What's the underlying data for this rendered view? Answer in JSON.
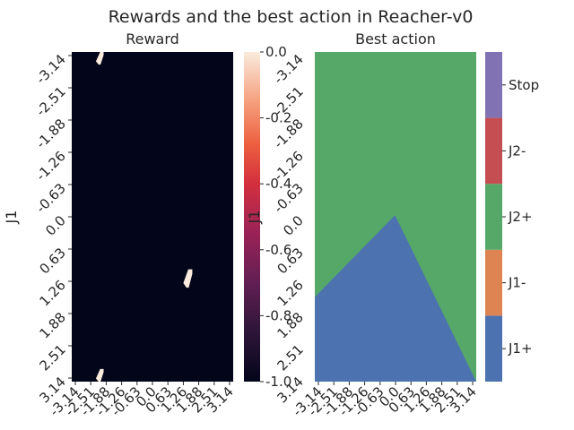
{
  "suptitle": "Rewards and the best action in Reacher-v0",
  "chart_data": [
    {
      "type": "heatmap",
      "title": "Reward",
      "ylabel": "J1",
      "xlabel": "",
      "x_ticks": [
        "-3.14",
        "-2.51",
        "-1.88",
        "-1.26",
        "-0.63",
        "0.0",
        "0.63",
        "1.26",
        "1.88",
        "2.51",
        "3.14"
      ],
      "y_ticks": [
        "-3.14",
        "-2.51",
        "-1.88",
        "-1.26",
        "-0.63",
        "0.0",
        "0.63",
        "1.26",
        "1.88",
        "2.51",
        "3.14"
      ],
      "values_description_regions": [
        {
          "x_range": [
            -2.2,
            -1.9
          ],
          "y_range": [
            -3.14,
            -2.9
          ],
          "value": 0.0
        },
        {
          "x_range": [
            1.2,
            1.55
          ],
          "y_range": [
            1.0,
            1.35
          ],
          "value": 0.0
        },
        {
          "x_range": [
            -2.2,
            -1.9
          ],
          "y_range": [
            2.9,
            3.14
          ],
          "value": 0.0
        }
      ],
      "background_value": -1.0,
      "colorbar": {
        "min": -1.0,
        "max": 0.0,
        "ticks": [
          "0.0",
          "-0.2",
          "-0.4",
          "-0.6",
          "-0.8",
          "-1.0"
        ]
      },
      "overlapping_labels": {
        "colorbar_axis_ylabel": "J1",
        "colorbar_axis_ticks": [
          "-3.14",
          "-2.51",
          "-1.88",
          "-1.26",
          "-0.63",
          "0.0",
          "0.63",
          "1.26",
          "1.88",
          "2.51",
          "3.14"
        ]
      },
      "colors": {
        "low": "#03051a",
        "high": "#faebdd"
      }
    },
    {
      "type": "heatmap",
      "title": "Best action",
      "xlabel": "",
      "ylabel": "",
      "x_ticks": [
        "-3.14",
        "-2.51",
        "-1.88",
        "-1.26",
        "-0.63",
        "0.0",
        "0.63",
        "1.26",
        "1.88",
        "2.51",
        "3.14"
      ],
      "y_ticks": [
        "-3.14",
        "-2.51",
        "-1.88",
        "-1.26",
        "-0.63",
        "0.0",
        "0.63",
        "1.26",
        "1.88",
        "2.51",
        "3.14"
      ],
      "background_category": "J2+",
      "region_category": "J1+",
      "region_boundary": [
        [
          -3.14,
          1.53
        ],
        [
          -0.02,
          -0.03
        ],
        [
          3.14,
          3.14
        ]
      ],
      "categories": [
        {
          "name": "J1+",
          "color": "#4c72b0"
        },
        {
          "name": "J1-",
          "color": "#dd8452"
        },
        {
          "name": "J2+",
          "color": "#55a868"
        },
        {
          "name": "J2-",
          "color": "#c44e52"
        },
        {
          "name": "Stop",
          "color": "#8172b3"
        }
      ]
    }
  ]
}
